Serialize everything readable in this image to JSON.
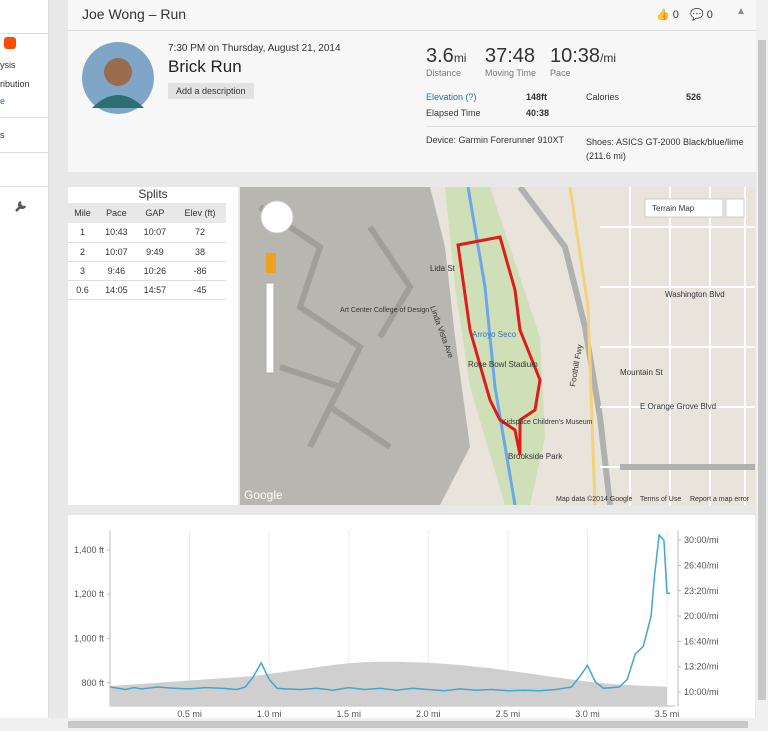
{
  "header": {
    "title": "Joe Wong – Run",
    "kudos": "0",
    "comments": "0"
  },
  "sidebar": {
    "items": [
      "ysis",
      "ribution",
      "e",
      "s"
    ]
  },
  "activity": {
    "datetime": "7:30 PM on Thursday, August 21, 2014",
    "name": "Brick Run",
    "add_description": "Add a description",
    "stats": [
      {
        "value": "3.6",
        "unit": "mi",
        "label": "Distance"
      },
      {
        "value": "37:48",
        "label": "Moving Time"
      },
      {
        "value": "10:38",
        "unit": "/mi",
        "label": "Pace"
      }
    ],
    "details": [
      {
        "label": "Elevation (?)",
        "value": "148ft"
      },
      {
        "label": "Calories",
        "value": "526"
      },
      {
        "label": "Elapsed Time",
        "value": "40:38"
      }
    ],
    "device": "Device: Garmin Forerunner 910XT",
    "shoes": "Shoes: ASICS GT-2000 Black/blue/lime (211.6 mi)"
  },
  "splits": {
    "title": "Splits",
    "columns": [
      "Mile",
      "Pace",
      "GAP",
      "Elev (ft)"
    ],
    "rows": [
      [
        "1",
        "10:43",
        "10:07",
        "72"
      ],
      [
        "2",
        "10:07",
        "9:49",
        "38"
      ],
      [
        "3",
        "9:46",
        "10:26",
        "-86"
      ],
      [
        "0.6",
        "14:05",
        "14:57",
        "-45"
      ]
    ]
  },
  "map": {
    "labels": [
      "Terrain Map",
      "Arroyo Seco",
      "Rose Bowl Stadium",
      "Brookside Park",
      "Kidspace Children's Museum",
      "Washington Blvd",
      "Mountain St",
      "E Orange Grove Blvd",
      "Foothill Fwy",
      "Lida St",
      "Linda Vista Ave",
      "Art Center College of Design",
      "Google",
      "Map data ©2014 Google",
      "Terms of Use",
      "Report a map error"
    ]
  },
  "chart_data": {
    "type": "line",
    "grid": true,
    "xlim": [
      0,
      3.55
    ],
    "xticks": [
      {
        "value": 0.5,
        "label": "0.5 mi"
      },
      {
        "value": 1.0,
        "label": "1.0 mi"
      },
      {
        "value": 1.5,
        "label": "1.5 mi"
      },
      {
        "value": 2.0,
        "label": "2.0 mi"
      },
      {
        "value": 2.5,
        "label": "2.5 mi"
      },
      {
        "value": 3.0,
        "label": "3.0 mi"
      },
      {
        "value": 3.5,
        "label": "3.5 mi"
      }
    ],
    "ylim": [
      695,
      1490
    ],
    "yticks": [
      {
        "value": 800,
        "label": "800 ft"
      },
      {
        "value": 1000,
        "label": "1,000 ft"
      },
      {
        "value": 1200,
        "label": "1,200 ft"
      },
      {
        "value": 1400,
        "label": "1,400 ft"
      }
    ],
    "y2lim": [
      490,
      1880
    ],
    "y2ticks": [
      {
        "value": 600,
        "label": "10:00/mi"
      },
      {
        "value": 800,
        "label": "13:20/mi"
      },
      {
        "value": 1000,
        "label": "16:40/mi"
      },
      {
        "value": 1200,
        "label": "20:00/mi"
      },
      {
        "value": 1400,
        "label": "23:20/mi"
      },
      {
        "value": 1600,
        "label": "26:40/mi"
      },
      {
        "value": 1800,
        "label": "30:00/mi"
      }
    ],
    "series": [
      {
        "color": "#cfcfcf",
        "area": true,
        "axis": "y",
        "x": [
          0,
          0.1,
          0.2,
          0.3,
          0.4,
          0.5,
          0.6,
          0.7,
          0.8,
          0.9,
          1.0,
          1.1,
          1.2,
          1.3,
          1.4,
          1.5,
          1.6,
          1.7,
          1.8,
          1.9,
          2.0,
          2.1,
          2.2,
          2.3,
          2.4,
          2.5,
          2.6,
          2.7,
          2.8,
          2.9,
          3.0,
          3.1,
          3.2,
          3.3,
          3.4,
          3.5
        ],
        "values": [
          785,
          790,
          795,
          800,
          805,
          810,
          815,
          820,
          825,
          830,
          840,
          850,
          860,
          870,
          880,
          888,
          893,
          895,
          895,
          893,
          890,
          885,
          880,
          872,
          865,
          855,
          845,
          835,
          825,
          815,
          805,
          798,
          792,
          788,
          785,
          782
        ]
      },
      {
        "color": "#3fa7d6",
        "area": false,
        "axis": "y2",
        "x": [
          0,
          0.05,
          0.1,
          0.15,
          0.2,
          0.3,
          0.4,
          0.5,
          0.6,
          0.7,
          0.8,
          0.85,
          0.9,
          0.95,
          1.0,
          1.05,
          1.1,
          1.2,
          1.3,
          1.4,
          1.5,
          1.6,
          1.7,
          1.8,
          1.9,
          2.0,
          2.1,
          2.2,
          2.3,
          2.4,
          2.5,
          2.6,
          2.7,
          2.8,
          2.9,
          2.95,
          3.0,
          3.05,
          3.1,
          3.2,
          3.25,
          3.3,
          3.35,
          3.4,
          3.42,
          3.45,
          3.48,
          3.5,
          3.52
        ],
        "values": [
          640,
          630,
          620,
          635,
          625,
          640,
          630,
          625,
          635,
          630,
          620,
          640,
          720,
          830,
          700,
          630,
          625,
          620,
          630,
          615,
          635,
          620,
          630,
          615,
          630,
          620,
          610,
          625,
          615,
          620,
          610,
          615,
          610,
          620,
          640,
          720,
          810,
          680,
          630,
          640,
          700,
          900,
          960,
          1200,
          1500,
          1840,
          1800,
          1380,
          1380
        ]
      }
    ]
  }
}
